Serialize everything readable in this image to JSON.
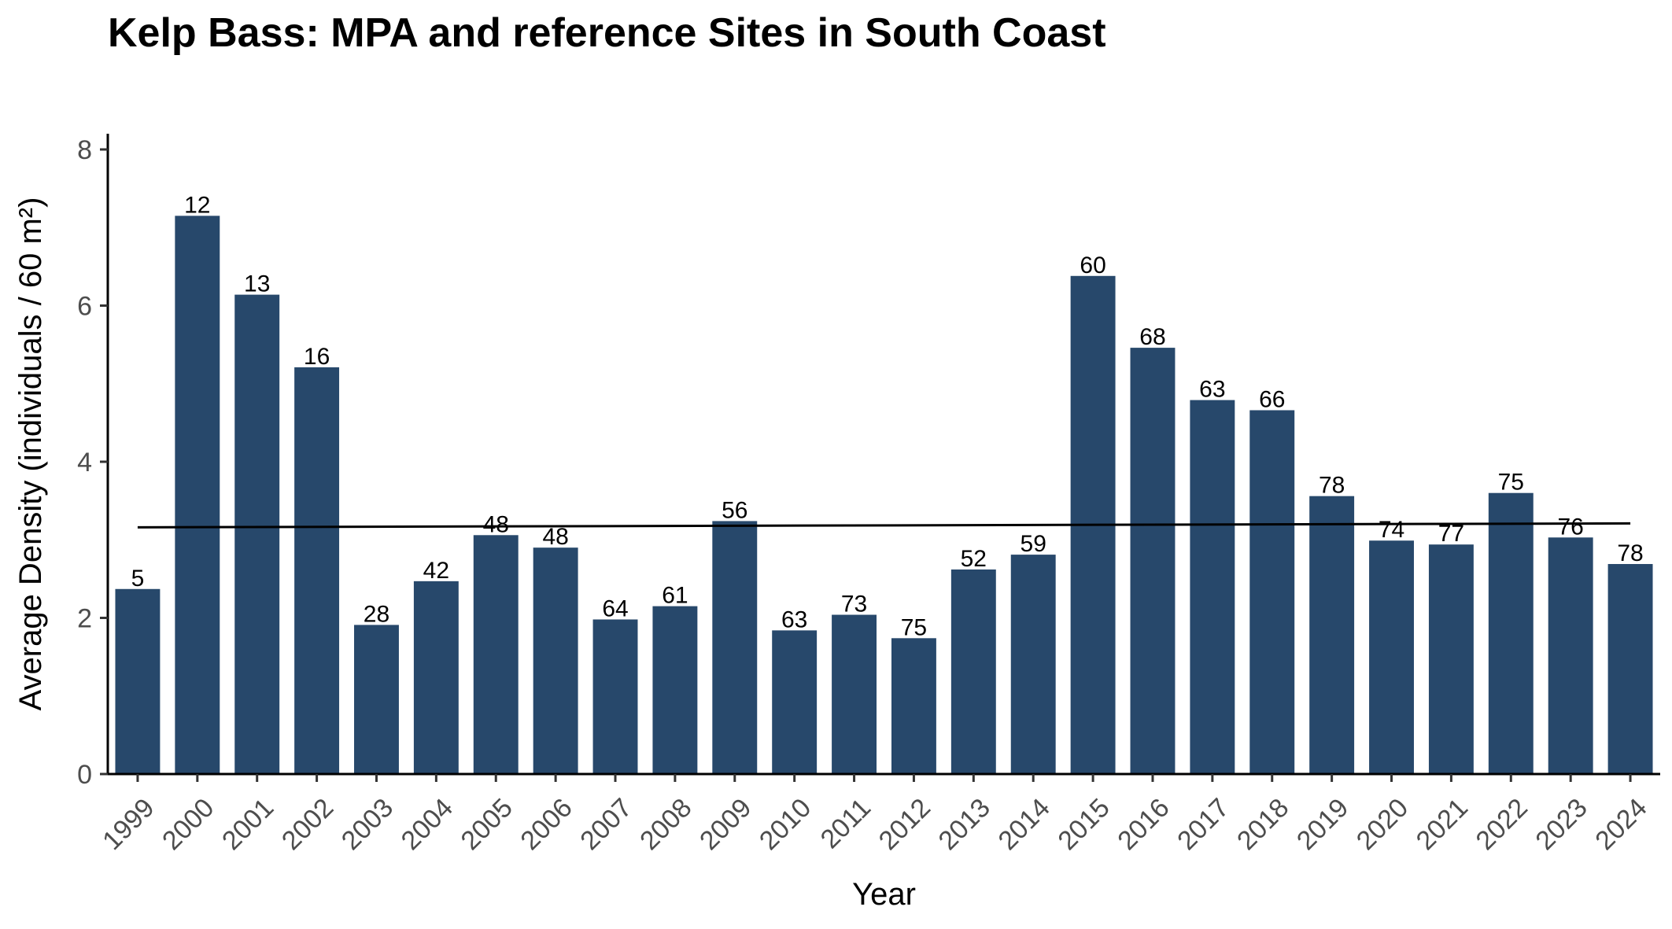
{
  "chart_data": {
    "type": "bar",
    "title": "Kelp Bass: MPA and reference Sites in South Coast",
    "xlabel": "Year",
    "ylabel": "Average Density (individuals / 60 m²)",
    "ylim": [
      0,
      8
    ],
    "yticks": [
      0,
      2,
      4,
      6,
      8
    ],
    "categories": [
      "1999",
      "2000",
      "2001",
      "2002",
      "2003",
      "2004",
      "2005",
      "2006",
      "2007",
      "2008",
      "2009",
      "2010",
      "2011",
      "2012",
      "2013",
      "2014",
      "2015",
      "2016",
      "2017",
      "2018",
      "2019",
      "2020",
      "2021",
      "2022",
      "2023",
      "2024"
    ],
    "values": [
      2.37,
      7.15,
      6.14,
      5.21,
      1.91,
      2.47,
      3.06,
      2.9,
      1.98,
      2.15,
      3.24,
      1.84,
      2.04,
      1.74,
      2.62,
      2.81,
      6.38,
      5.46,
      4.79,
      4.66,
      3.56,
      2.99,
      2.94,
      3.6,
      3.03,
      2.69
    ],
    "bar_labels": [
      "5",
      "12",
      "13",
      "16",
      "28",
      "42",
      "48",
      "48",
      "64",
      "61",
      "56",
      "63",
      "73",
      "75",
      "52",
      "59",
      "60",
      "68",
      "63",
      "66",
      "78",
      "74",
      "77",
      "75",
      "76",
      "78"
    ],
    "trend_line": {
      "start": 3.16,
      "end": 3.21
    },
    "grid": false,
    "bar_color": "#27486b"
  }
}
